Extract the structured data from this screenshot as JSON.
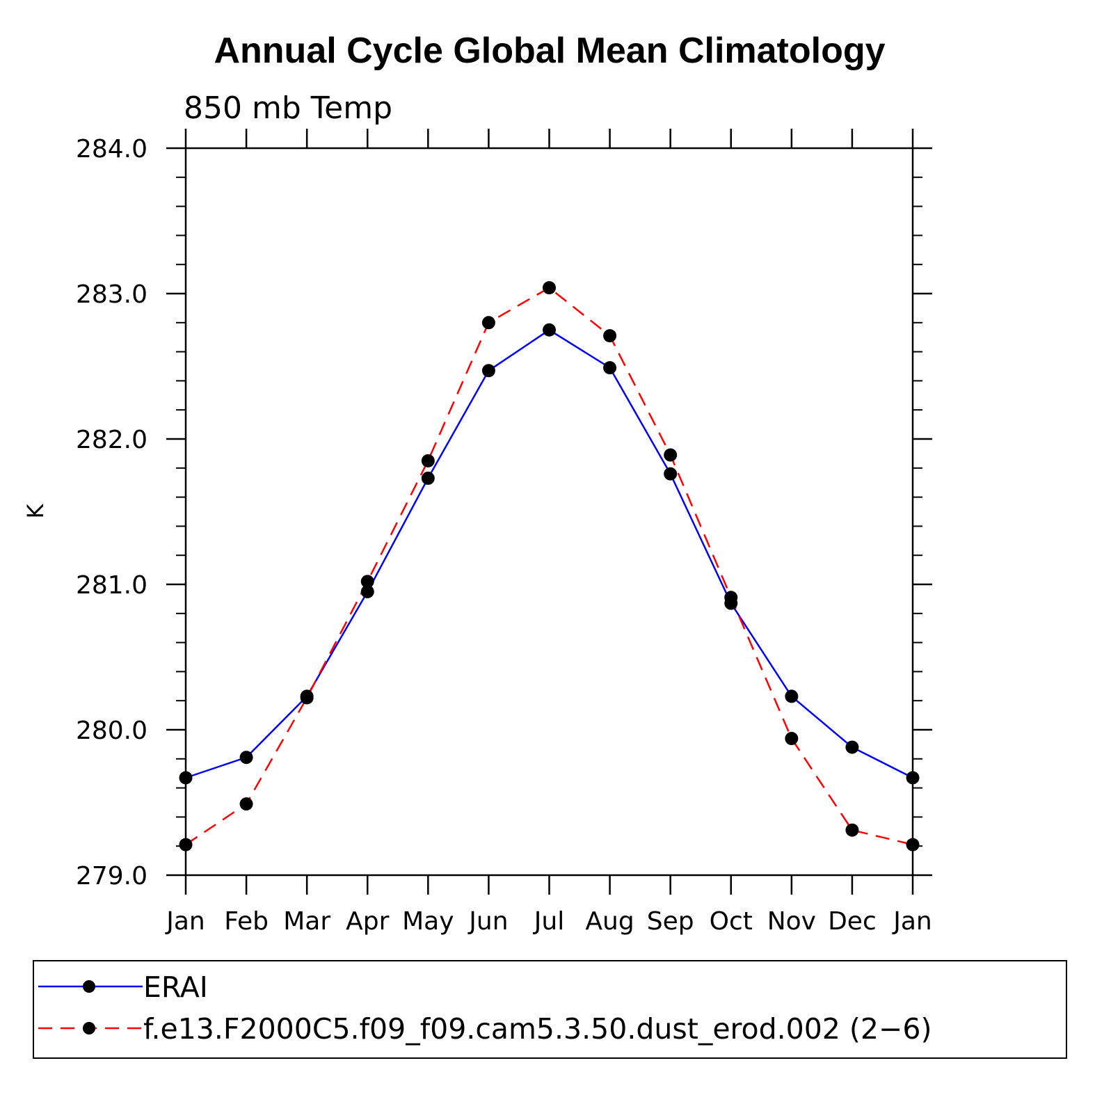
{
  "chart_data": {
    "type": "line",
    "title": "Annual Cycle Global Mean Climatology",
    "subtitle": "850 mb Temp",
    "ylabel": "K",
    "xlabel": "",
    "categories": [
      "Jan",
      "Feb",
      "Mar",
      "Apr",
      "May",
      "Jun",
      "Jul",
      "Aug",
      "Sep",
      "Oct",
      "Nov",
      "Dec",
      "Jan"
    ],
    "ylim": [
      279.0,
      284.0
    ],
    "yticks": [
      "279.0",
      "280.0",
      "281.0",
      "282.0",
      "283.0",
      "284.0"
    ],
    "grid": false,
    "legend_position": "bottom",
    "series": [
      {
        "name": "ERAI",
        "color": "#0000ff",
        "dash": "solid",
        "values": [
          279.67,
          279.81,
          280.23,
          280.95,
          281.73,
          282.47,
          282.75,
          282.49,
          281.76,
          280.87,
          280.23,
          279.88,
          279.67
        ]
      },
      {
        "name": "f.e13.F2000C5.f09_f09.cam5.3.50.dust_erod.002 (2−6)",
        "color": "#ff0000",
        "dash": "dashed",
        "values": [
          279.21,
          279.49,
          280.22,
          281.02,
          281.85,
          282.8,
          283.04,
          282.71,
          281.89,
          280.91,
          279.94,
          279.31,
          279.21
        ]
      }
    ]
  }
}
